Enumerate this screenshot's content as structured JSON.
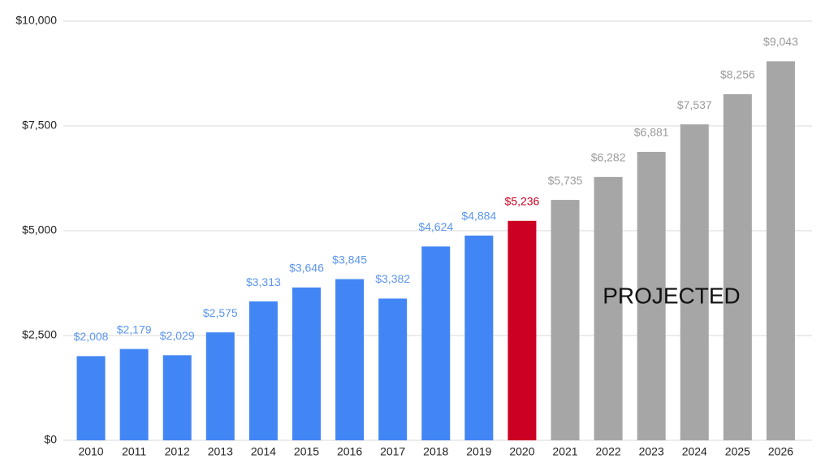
{
  "chart_data": {
    "type": "bar",
    "categories": [
      "2010",
      "2011",
      "2012",
      "2013",
      "2014",
      "2015",
      "2016",
      "2017",
      "2018",
      "2019",
      "2020",
      "2021",
      "2022",
      "2023",
      "2024",
      "2025",
      "2026"
    ],
    "values": [
      2008,
      2179,
      2029,
      2575,
      3313,
      3646,
      3845,
      3382,
      4624,
      4884,
      5236,
      5735,
      6282,
      6881,
      7537,
      8256,
      9043
    ],
    "value_labels": [
      "$2,008",
      "$2,179",
      "$2,029",
      "$2,575",
      "$3,313",
      "$3,646",
      "$3,845",
      "$3,382",
      "$4,624",
      "$4,884",
      "$5,236",
      "$5,735",
      "$6,282",
      "$6,881",
      "$7,537",
      "$8,256",
      "$9,043"
    ],
    "colors": [
      "#4285f4",
      "#4285f4",
      "#4285f4",
      "#4285f4",
      "#4285f4",
      "#4285f4",
      "#4285f4",
      "#4285f4",
      "#4285f4",
      "#4285f4",
      "#cc0022",
      "#a6a6a6",
      "#a6a6a6",
      "#a6a6a6",
      "#a6a6a6",
      "#a6a6a6",
      "#a6a6a6"
    ],
    "label_colors": [
      "#5b95ec",
      "#5b95ec",
      "#5b95ec",
      "#5b95ec",
      "#5b95ec",
      "#5b95ec",
      "#5b95ec",
      "#5b95ec",
      "#5b95ec",
      "#5b95ec",
      "#cc0022",
      "#9a9a9a",
      "#9a9a9a",
      "#9a9a9a",
      "#9a9a9a",
      "#9a9a9a",
      "#9a9a9a"
    ],
    "annotation": "PROJECTED",
    "ylim": [
      0,
      10000
    ],
    "yticks": [
      {
        "value": 0,
        "label": "$0"
      },
      {
        "value": 2500,
        "label": "$2,500"
      },
      {
        "value": 5000,
        "label": "$5,000"
      },
      {
        "value": 7500,
        "label": "$7,500"
      },
      {
        "value": 10000,
        "label": "$10,000"
      }
    ],
    "grid": true
  }
}
